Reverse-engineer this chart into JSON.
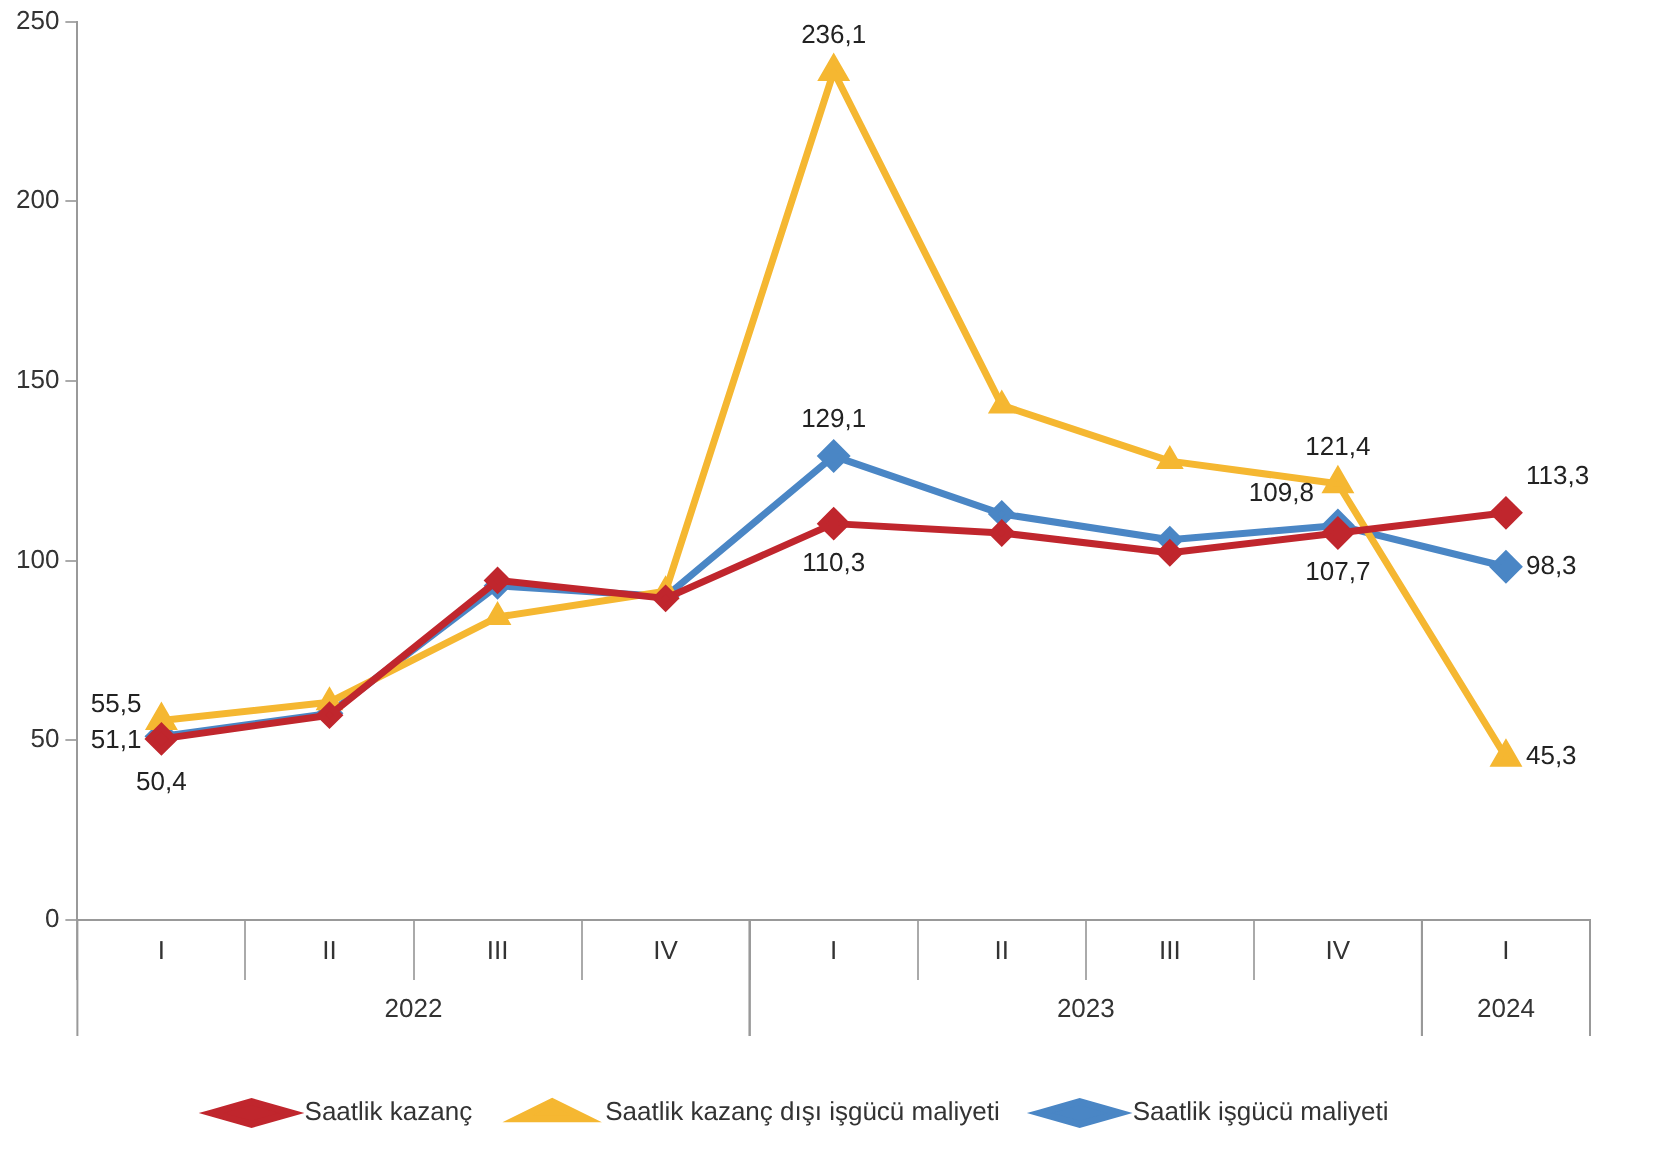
{
  "chart_data": {
    "type": "line",
    "categories": [
      "I",
      "II",
      "III",
      "IV",
      "I",
      "II",
      "III",
      "IV",
      "I"
    ],
    "annotations": [
      "2022",
      "2023",
      "2024"
    ],
    "series": [
      {
        "name": "Saatlik kazanç",
        "color": "#c0262d",
        "marker": "diamond",
        "values": [
          50.4,
          57.0,
          94.5,
          89.5,
          110.3,
          107.7,
          102.2,
          107.7,
          113.3
        ],
        "value_labels": [
          "50,4",
          null,
          null,
          null,
          "110,3",
          null,
          null,
          "107,7",
          "113,3"
        ]
      },
      {
        "name": "Saatlik kazanç dışı işgücü maliyeti",
        "color": "#f5b731",
        "marker": "triangle",
        "values": [
          55.5,
          60.6,
          84.3,
          91.5,
          236.1,
          143.2,
          127.7,
          121.4,
          45.3
        ],
        "value_labels": [
          "55,5",
          null,
          null,
          null,
          "236,1",
          null,
          null,
          "121,4",
          "45,3"
        ]
      },
      {
        "name": "Saatlik işgücü maliyeti",
        "color": "#4a86c5",
        "marker": "diamond",
        "values": [
          51.1,
          57.5,
          93.0,
          90.0,
          129.1,
          113.0,
          105.8,
          109.8,
          98.3
        ],
        "value_labels": [
          "51,1",
          null,
          null,
          null,
          "129,1",
          null,
          null,
          "109,8",
          "98,3"
        ]
      }
    ],
    "ylim": [
      0,
      250
    ],
    "yticks": [
      0,
      50,
      100,
      150,
      200,
      250
    ],
    "grid": false,
    "legend": "bottom",
    "line_style": "solid"
  }
}
